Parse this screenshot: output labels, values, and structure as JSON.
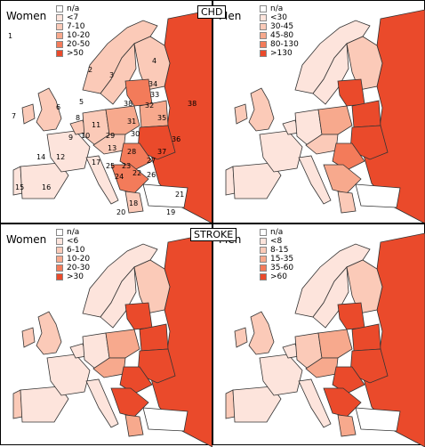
{
  "titles": {
    "chd": "CHD",
    "stroke": "STROKE"
  },
  "colors": {
    "na": "#ffffff",
    "c1": "#fde4dc",
    "c2": "#fbcab8",
    "c3": "#f7a98d",
    "c4": "#f37b5a",
    "c5": "#ea4a2b",
    "border": "#333333",
    "sea": "#ffffff"
  },
  "panels": [
    {
      "id": "chd-women",
      "gender": "Women",
      "legend": [
        "n/a",
        "<7",
        "7-10",
        "10-20",
        "20-50",
        ">50"
      ]
    },
    {
      "id": "chd-men",
      "gender": "Men",
      "legend": [
        "n/a",
        "<30",
        "30-45",
        "45-80",
        "80-130",
        ">130"
      ]
    },
    {
      "id": "stroke-women",
      "gender": "Women",
      "legend": [
        "n/a",
        "<6",
        "6-10",
        "10-20",
        "20-30",
        ">30"
      ]
    },
    {
      "id": "stroke-men",
      "gender": "Men",
      "legend": [
        "n/a",
        "<8",
        "8-15",
        "15-35",
        "35-60",
        ">60"
      ]
    }
  ],
  "country_labels": [
    "1",
    "2",
    "3",
    "4",
    "5",
    "6",
    "7",
    "8",
    "9",
    "10",
    "11",
    "12",
    "13",
    "14",
    "15",
    "16",
    "17",
    "18",
    "19",
    "20",
    "21",
    "22",
    "23",
    "24",
    "25",
    "26",
    "27",
    "28",
    "29",
    "30",
    "31",
    "32",
    "33",
    "34",
    "35",
    "36",
    "37",
    "38"
  ]
}
